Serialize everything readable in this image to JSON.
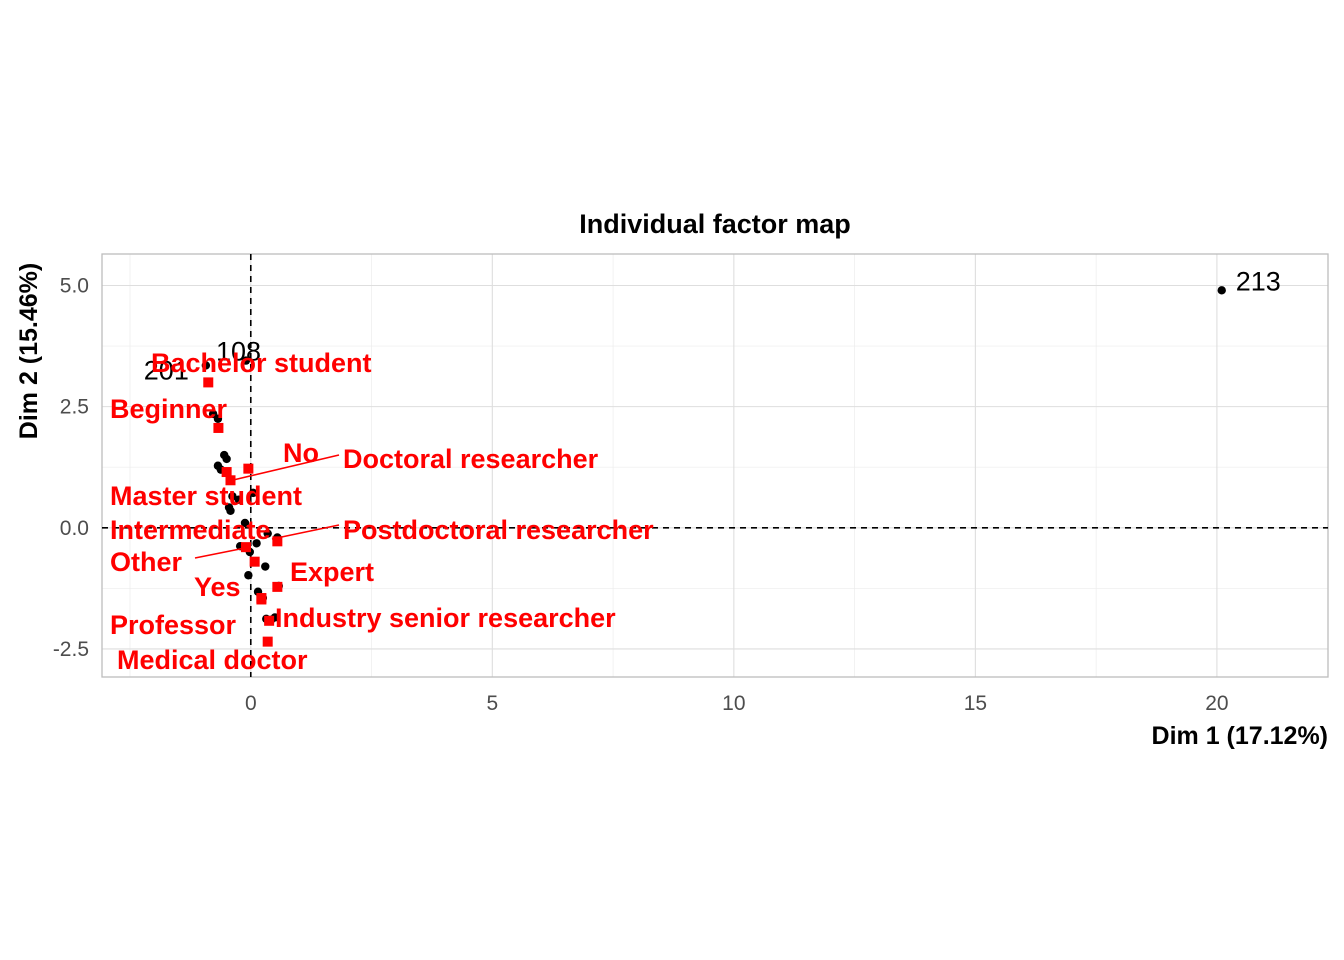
{
  "chart_data": {
    "type": "scatter",
    "title": "Individual factor map",
    "xlabel": "Dim 1 (17.12%)",
    "ylabel": "Dim 2 (15.46%)",
    "xlim": [
      -3.08,
      22.3
    ],
    "ylim": [
      -3.08,
      5.65
    ],
    "x_ticks": [
      0,
      5,
      10,
      15,
      20
    ],
    "x_tick_labels": [
      "0",
      "5",
      "10",
      "15",
      "20"
    ],
    "y_ticks": [
      -2.5,
      0,
      2.5,
      5
    ],
    "y_tick_labels": [
      "-2.5",
      "0.0",
      "2.5",
      "5.0"
    ],
    "reference_lines": {
      "x": 0,
      "y": 0,
      "style": "dashed"
    },
    "grid": true,
    "individuals": {
      "color": "#000000",
      "points": [
        {
          "x": 20.1,
          "y": 4.9,
          "label": "213"
        },
        {
          "x": -0.1,
          "y": 3.45,
          "label": "108"
        },
        {
          "x": -0.93,
          "y": 3.35,
          "label": "201"
        },
        {
          "x": -0.78,
          "y": 2.35
        },
        {
          "x": -0.68,
          "y": 2.25
        },
        {
          "x": -0.55,
          "y": 1.5
        },
        {
          "x": -0.5,
          "y": 1.42
        },
        {
          "x": -0.68,
          "y": 1.28
        },
        {
          "x": -0.62,
          "y": 1.2
        },
        {
          "x": -0.38,
          "y": 0.65
        },
        {
          "x": -0.25,
          "y": 0.58
        },
        {
          "x": 0.05,
          "y": 0.72
        },
        {
          "x": -0.45,
          "y": 0.42
        },
        {
          "x": -0.42,
          "y": 0.35
        },
        {
          "x": -0.12,
          "y": 0.1
        },
        {
          "x": -0.22,
          "y": -0.38
        },
        {
          "x": 0.12,
          "y": -0.32
        },
        {
          "x": 0.35,
          "y": -0.12
        },
        {
          "x": 0.55,
          "y": -0.2
        },
        {
          "x": -0.02,
          "y": -0.5
        },
        {
          "x": 0.3,
          "y": -0.8
        },
        {
          "x": -0.05,
          "y": -0.98
        },
        {
          "x": 0.15,
          "y": -1.32
        },
        {
          "x": 0.25,
          "y": -1.45
        },
        {
          "x": 0.32,
          "y": -1.88
        },
        {
          "x": 0.42,
          "y": -1.9
        },
        {
          "x": 0.5,
          "y": -1.85
        },
        {
          "x": 0.58,
          "y": -1.2
        }
      ]
    },
    "categories": {
      "color": "#ff0000",
      "points": [
        {
          "x": -0.88,
          "y": 3.0,
          "label": "Bachelor student"
        },
        {
          "x": -0.67,
          "y": 2.06,
          "label": "Beginner"
        },
        {
          "x": -0.05,
          "y": 1.22,
          "label": "No"
        },
        {
          "x": -0.5,
          "y": 1.15,
          "label": "Doctoral researcher"
        },
        {
          "x": -0.42,
          "y": 0.98,
          "label": "Master student"
        },
        {
          "x": 0.55,
          "y": -0.28,
          "label": "Intermediate"
        },
        {
          "x": -0.1,
          "y": -0.4,
          "label": "Postdoctoral researcher"
        },
        {
          "x": 0.08,
          "y": -0.7,
          "label": "Other"
        },
        {
          "x": 0.55,
          "y": -1.22,
          "label": "Expert"
        },
        {
          "x": 0.22,
          "y": -1.48,
          "label": "Yes"
        },
        {
          "x": 0.38,
          "y": -1.92,
          "label": "Industry senior researcher"
        },
        {
          "x": 0.22,
          "y": -1.45,
          "label": "Professor"
        },
        {
          "x": 0.35,
          "y": -2.35,
          "label": "Medical doctor"
        }
      ]
    }
  }
}
